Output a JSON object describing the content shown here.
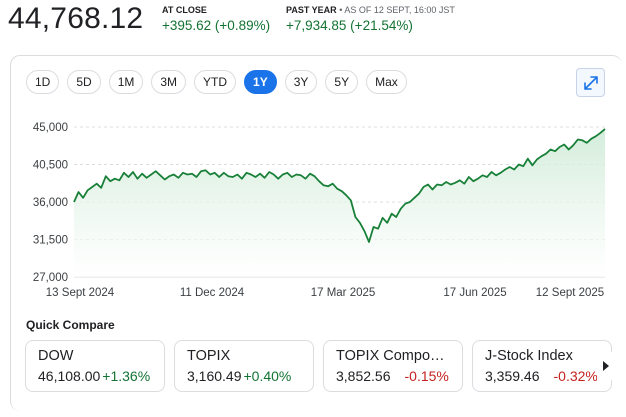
{
  "header": {
    "price": "44,768.12",
    "at_close_label": "AT CLOSE",
    "at_close_change": "+395.62 (+0.89%)",
    "past_year_label": "PAST YEAR",
    "past_year_sub": " • AS OF 12 SEPT, 16:00 JST",
    "past_year_change": "+7,934.85 (+21.54%)"
  },
  "ranges": [
    "1D",
    "5D",
    "1M",
    "3M",
    "YTD",
    "1Y",
    "3Y",
    "5Y",
    "Max"
  ],
  "active_range": "1Y",
  "icons": {
    "expand": "expand-arrows-icon",
    "next": "chevron-right-icon"
  },
  "colors": {
    "line": "#188038",
    "fill": "#e6f4ea",
    "accent": "#1a73e8",
    "up": "#137333",
    "down": "#c5221f"
  },
  "chart_data": {
    "type": "area",
    "ylim": [
      27000,
      45000
    ],
    "yticks": [
      "45,000",
      "40,500",
      "36,000",
      "31,500",
      "27,000"
    ],
    "ytick_values": [
      45000,
      40500,
      36000,
      31500,
      27000
    ],
    "xticks": [
      "13 Sept 2024",
      "11 Dec 2024",
      "17 Mar 2025",
      "17 Jun 2025",
      "12 Sept 2025"
    ],
    "grid": true,
    "series": [
      {
        "values": [
          36000,
          37200,
          36500,
          37400,
          37800,
          38200,
          37700,
          39100,
          38500,
          38800,
          38600,
          39500,
          39000,
          39600,
          38800,
          39400,
          38900,
          39300,
          39700,
          39200,
          38700,
          39100,
          39300,
          38900,
          39500,
          39300,
          39400,
          39000,
          39700,
          39800,
          39300,
          39500,
          39000,
          39500,
          39100,
          39000,
          39300,
          38800,
          39500,
          39300,
          39000,
          39400,
          38900,
          39600,
          39300,
          38800,
          39300,
          39500,
          39000,
          39300,
          39200,
          38800,
          39400,
          39100,
          38500,
          38000,
          37900,
          38200,
          37600,
          37300,
          36800,
          36200,
          34200,
          33500,
          32500,
          31200,
          33000,
          32800,
          34100,
          33500,
          34600,
          34200,
          35200,
          35800,
          36000,
          36500,
          37000,
          37800,
          38100,
          37500,
          38100,
          38000,
          38400,
          38100,
          38300,
          38600,
          38200,
          39000,
          38500,
          38800,
          39200,
          39000,
          39600,
          39200,
          39500,
          39900,
          40200,
          39900,
          40500,
          40300,
          41200,
          40400,
          41100,
          41500,
          41800,
          42300,
          42100,
          42600,
          42900,
          42300,
          42800,
          43500,
          43400,
          43100,
          43600,
          43900,
          44300,
          44768
        ]
      }
    ]
  },
  "quick_compare": {
    "title": "Quick Compare",
    "items": [
      {
        "name": "DOW",
        "value": "46,108.00",
        "change": "+1.36%",
        "dir": "up"
      },
      {
        "name": "TOPIX",
        "value": "3,160.49",
        "change": "+0.40%",
        "dir": "up"
      },
      {
        "name": "TOPIX Compo…",
        "value": "3,852.56",
        "change": "-0.15%",
        "dir": "down"
      },
      {
        "name": "J-Stock Index",
        "value": "3,359.46",
        "change": "-0.32%",
        "dir": "down"
      }
    ]
  }
}
